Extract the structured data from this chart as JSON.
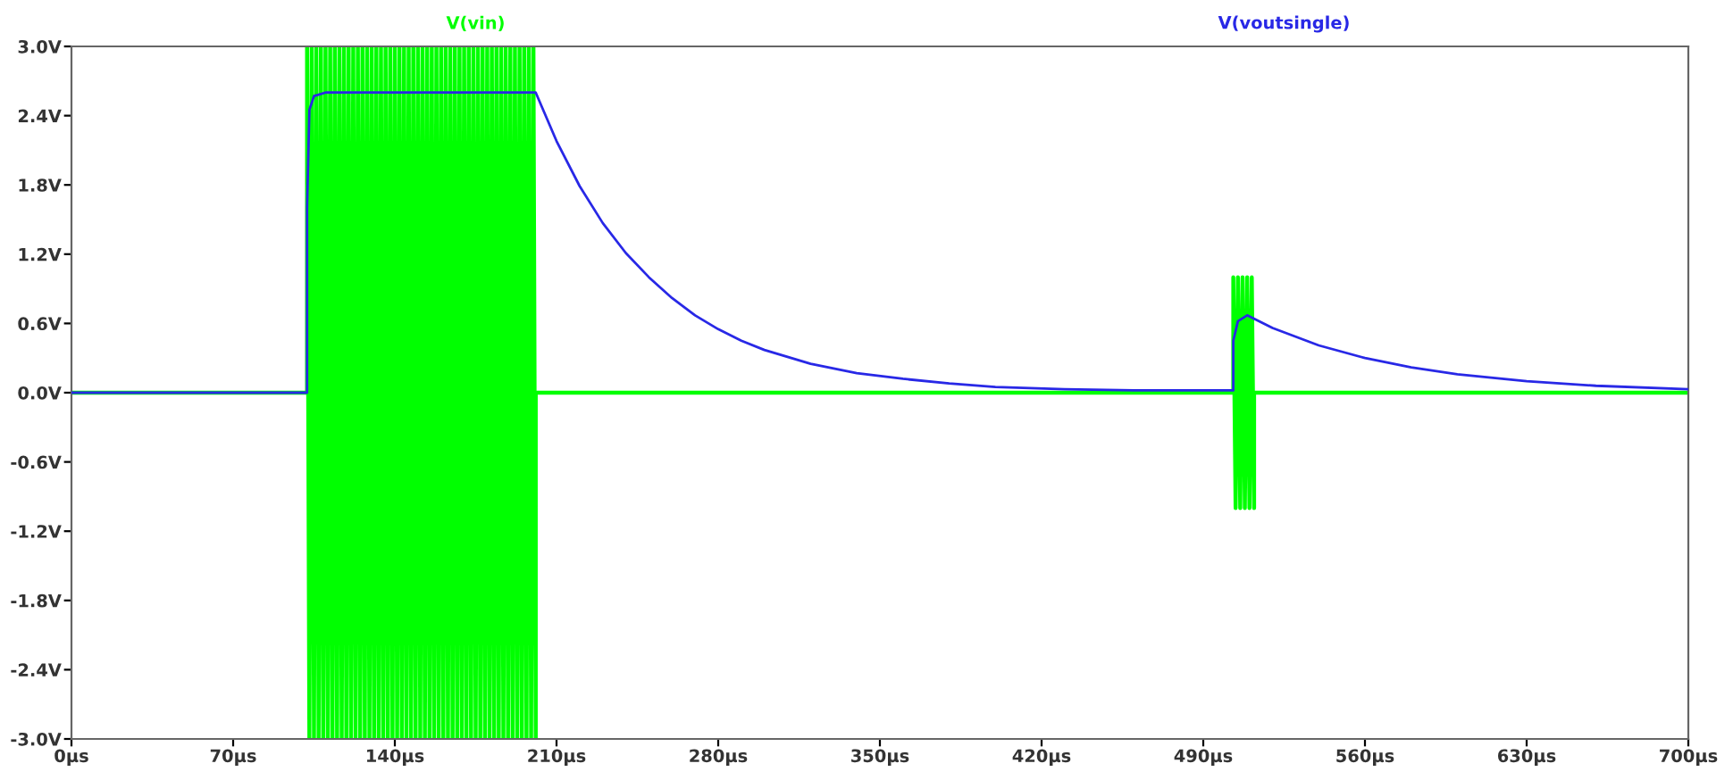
{
  "chart_data": {
    "type": "line",
    "legend": "top",
    "grid": false,
    "xlim": [
      0,
      700
    ],
    "ylim": [
      -3,
      3
    ],
    "xticks": [
      {
        "value": 0,
        "label": "0µs"
      },
      {
        "value": 70,
        "label": "70µs"
      },
      {
        "value": 140,
        "label": "140µs"
      },
      {
        "value": 210,
        "label": "210µs"
      },
      {
        "value": 280,
        "label": "280µs"
      },
      {
        "value": 350,
        "label": "350µs"
      },
      {
        "value": 420,
        "label": "420µs"
      },
      {
        "value": 490,
        "label": "490µs"
      },
      {
        "value": 560,
        "label": "560µs"
      },
      {
        "value": 630,
        "label": "630µs"
      },
      {
        "value": 700,
        "label": "700µs"
      }
    ],
    "yticks": [
      {
        "value": 3,
        "label": "3.0V"
      },
      {
        "value": 2.4,
        "label": "2.4V"
      },
      {
        "value": 1.8,
        "label": "1.8V"
      },
      {
        "value": 1.2,
        "label": "1.2V"
      },
      {
        "value": 0.6,
        "label": "0.6V"
      },
      {
        "value": 0,
        "label": "0.0V"
      },
      {
        "value": -0.6,
        "label": "-0.6V"
      },
      {
        "value": -1.2,
        "label": "-1.2V"
      },
      {
        "value": -1.8,
        "label": "-1.8V"
      },
      {
        "value": -2.4,
        "label": "-2.4V"
      },
      {
        "value": -3,
        "label": "-3.0V"
      }
    ],
    "series": [
      {
        "name": "V(vin)",
        "color": "#00ff00",
        "x": [
          0,
          102,
          102,
          103,
          104,
          105,
          106,
          107,
          108,
          109,
          110,
          111,
          112,
          113,
          114,
          115,
          116,
          117,
          118,
          119,
          120,
          121,
          122,
          123,
          124,
          125,
          126,
          127,
          128,
          129,
          130,
          131,
          132,
          133,
          134,
          135,
          136,
          137,
          138,
          139,
          140,
          141,
          142,
          143,
          144,
          145,
          146,
          147,
          148,
          149,
          150,
          151,
          152,
          153,
          154,
          155,
          156,
          157,
          158,
          159,
          160,
          161,
          162,
          163,
          164,
          165,
          166,
          167,
          168,
          169,
          170,
          171,
          172,
          173,
          174,
          175,
          176,
          177,
          178,
          179,
          180,
          181,
          182,
          183,
          184,
          185,
          186,
          187,
          188,
          189,
          190,
          191,
          192,
          193,
          194,
          195,
          196,
          197,
          198,
          199,
          200,
          201,
          201,
          503,
          503,
          504,
          505,
          506,
          507,
          508,
          509,
          510,
          511,
          512,
          512,
          700
        ],
        "values": [
          0,
          0,
          3,
          -3,
          3,
          -3,
          3,
          -3,
          3,
          -3,
          3,
          -3,
          3,
          -3,
          3,
          -3,
          3,
          -3,
          3,
          -3,
          3,
          -3,
          3,
          -3,
          3,
          -3,
          3,
          -3,
          3,
          -3,
          3,
          -3,
          3,
          -3,
          3,
          -3,
          3,
          -3,
          3,
          -3,
          3,
          -3,
          3,
          -3,
          3,
          -3,
          3,
          -3,
          3,
          -3,
          3,
          -3,
          3,
          -3,
          3,
          -3,
          3,
          -3,
          3,
          -3,
          3,
          -3,
          3,
          -3,
          3,
          -3,
          3,
          -3,
          3,
          -3,
          3,
          -3,
          3,
          -3,
          3,
          -3,
          3,
          -3,
          3,
          -3,
          3,
          -3,
          3,
          -3,
          3,
          -3,
          3,
          -3,
          3,
          -3,
          3,
          -3,
          3,
          -3,
          3,
          -3,
          3,
          -3,
          3,
          -3,
          3,
          -3,
          0,
          0,
          1,
          -1,
          1,
          -1,
          1,
          -1,
          1,
          -1,
          1,
          -1,
          0,
          0
        ]
      },
      {
        "name": "V(voutsingle)",
        "color": "#2828e6",
        "x": [
          0,
          102,
          102,
          103,
          105,
          110,
          201,
          210,
          220,
          230,
          240,
          250,
          260,
          270,
          280,
          290,
          300,
          320,
          340,
          360,
          380,
          400,
          430,
          460,
          503,
          503,
          505,
          509,
          520,
          540,
          560,
          580,
          600,
          630,
          660,
          700
        ],
        "values": [
          0,
          0,
          1.6,
          2.45,
          2.57,
          2.6,
          2.6,
          2.18,
          1.79,
          1.47,
          1.21,
          1.0,
          0.82,
          0.67,
          0.55,
          0.45,
          0.37,
          0.25,
          0.17,
          0.12,
          0.08,
          0.05,
          0.03,
          0.02,
          0.02,
          0.45,
          0.62,
          0.67,
          0.56,
          0.41,
          0.3,
          0.22,
          0.16,
          0.1,
          0.06,
          0.03
        ]
      }
    ]
  }
}
